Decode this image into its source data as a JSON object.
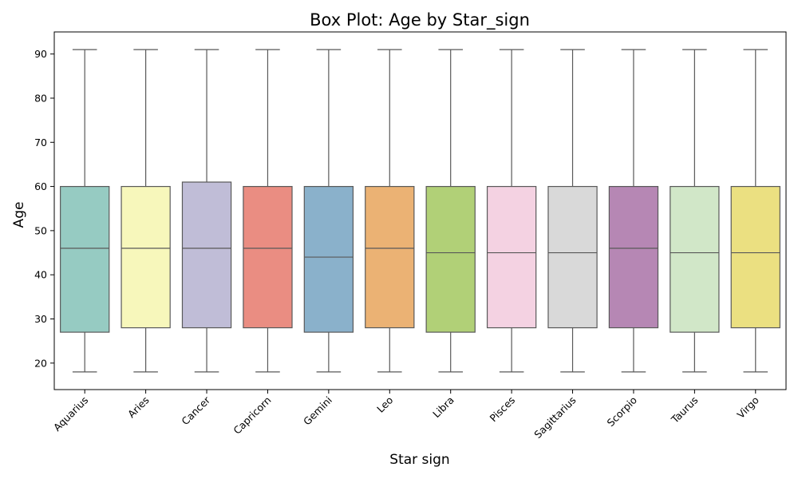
{
  "chart_data": {
    "type": "box",
    "title": "Box Plot: Age by Star_sign",
    "xlabel": "Star sign",
    "ylabel": "Age",
    "ylim": [
      14,
      95
    ],
    "yticks": [
      20,
      30,
      40,
      50,
      60,
      70,
      80,
      90
    ],
    "grid": false,
    "categories": [
      "Aquarius",
      "Aries",
      "Cancer",
      "Capricorn",
      "Gemini",
      "Leo",
      "Libra",
      "Pisces",
      "Sagittarius",
      "Scorpio",
      "Taurus",
      "Virgo"
    ],
    "series": [
      {
        "category": "Aquarius",
        "min": 18,
        "q1": 27,
        "median": 46,
        "q3": 60,
        "max": 91,
        "color": "#96cbc2"
      },
      {
        "category": "Aries",
        "min": 18,
        "q1": 28,
        "median": 46,
        "q3": 60,
        "max": 91,
        "color": "#f7f7bb"
      },
      {
        "category": "Cancer",
        "min": 18,
        "q1": 28,
        "median": 46,
        "q3": 61,
        "max": 91,
        "color": "#c0bdd7"
      },
      {
        "category": "Capricorn",
        "min": 18,
        "q1": 28,
        "median": 46,
        "q3": 60,
        "max": 91,
        "color": "#ea8d82"
      },
      {
        "category": "Gemini",
        "min": 18,
        "q1": 27,
        "median": 44,
        "q3": 60,
        "max": 91,
        "color": "#8ab1cb"
      },
      {
        "category": "Leo",
        "min": 18,
        "q1": 28,
        "median": 46,
        "q3": 60,
        "max": 91,
        "color": "#ebb274"
      },
      {
        "category": "Libra",
        "min": 18,
        "q1": 27,
        "median": 45,
        "q3": 60,
        "max": 91,
        "color": "#b1d077"
      },
      {
        "category": "Pisces",
        "min": 18,
        "q1": 28,
        "median": 45,
        "q3": 60,
        "max": 91,
        "color": "#f4d2e2"
      },
      {
        "category": "Sagittarius",
        "min": 18,
        "q1": 28,
        "median": 45,
        "q3": 60,
        "max": 91,
        "color": "#d9d9d9"
      },
      {
        "category": "Scorpio",
        "min": 18,
        "q1": 28,
        "median": 46,
        "q3": 60,
        "max": 91,
        "color": "#b687b4"
      },
      {
        "category": "Taurus",
        "min": 18,
        "q1": 27,
        "median": 45,
        "q3": 60,
        "max": 91,
        "color": "#d1e7c8"
      },
      {
        "category": "Virgo",
        "min": 18,
        "q1": 28,
        "median": 45,
        "q3": 60,
        "max": 91,
        "color": "#ebe081"
      }
    ]
  }
}
